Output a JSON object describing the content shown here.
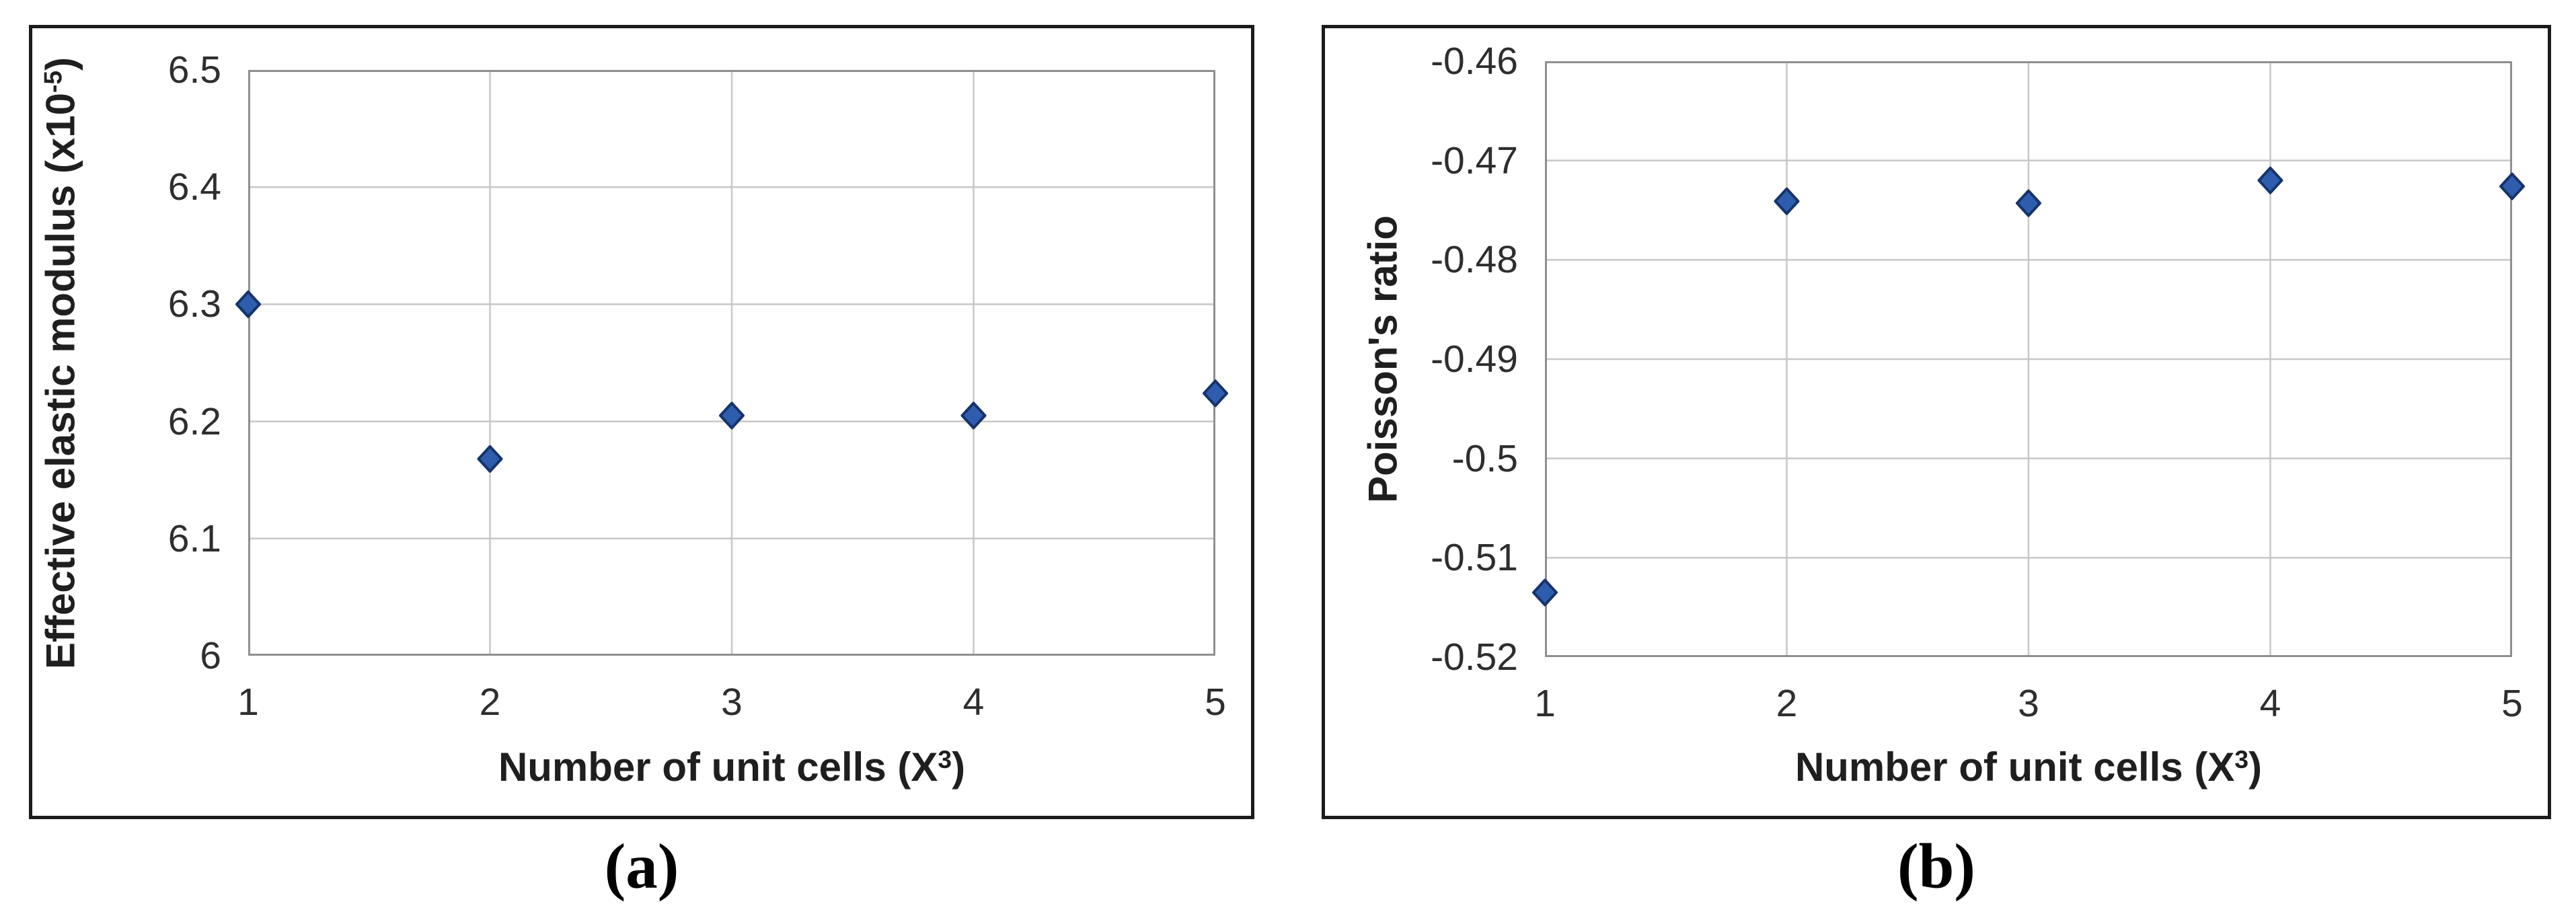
{
  "figure": {
    "background": "#ffffff",
    "caption_a": "(a)",
    "caption_b": "(b)"
  },
  "colors": {
    "panel_border": "#1b1b1b",
    "plot_border": "#8f8f8f",
    "gridline": "#c7c7c7",
    "marker_fill": "#2e5dad",
    "marker_stroke": "#16336b",
    "tick_text": "#2e2e2e",
    "title_text": "#1f1f1f"
  },
  "chart_data": [
    {
      "id": "a",
      "type": "scatter",
      "marker": "diamond",
      "x": [
        1,
        2,
        3,
        4,
        5
      ],
      "y": [
        6.3,
        6.168,
        6.205,
        6.205,
        6.224
      ],
      "xlim": [
        1,
        5
      ],
      "ylim": [
        6,
        6.5
      ],
      "xtick_labels": [
        "1",
        "2",
        "3",
        "4",
        "5"
      ],
      "xtick_values": [
        1,
        2,
        3,
        4,
        5
      ],
      "ytick_labels": [
        "6.5",
        "6.4",
        "6.3",
        "6.2",
        "6.1",
        "6"
      ],
      "ytick_values": [
        6.5,
        6.4,
        6.3,
        6.2,
        6.1,
        6
      ],
      "grid": true,
      "legend": null,
      "xlabel": "Number of unit cells (X³)",
      "xlabel_parts": {
        "pre": "Number of unit cells (X",
        "sup": "3",
        "post": ")"
      },
      "ylabel": "Effective elastic modulus (x10⁻⁵)",
      "ylabel_parts": {
        "pre": "Effective elastic modulus (x10",
        "sup": "-5",
        "post": ")"
      },
      "caption": "(a)"
    },
    {
      "id": "b",
      "type": "scatter",
      "marker": "diamond",
      "x": [
        1,
        2,
        3,
        4,
        5
      ],
      "y": [
        -0.5135,
        -0.4741,
        -0.4743,
        -0.472,
        -0.4726
      ],
      "xlim": [
        1,
        5
      ],
      "ylim": [
        -0.52,
        -0.46
      ],
      "xtick_labels": [
        "1",
        "2",
        "3",
        "4",
        "5"
      ],
      "xtick_values": [
        1,
        2,
        3,
        4,
        5
      ],
      "ytick_labels": [
        "-0.46",
        "-0.47",
        "-0.48",
        "-0.49",
        "-0.5",
        "-0.51",
        "-0.52"
      ],
      "ytick_values": [
        -0.46,
        -0.47,
        -0.48,
        -0.49,
        -0.5,
        -0.51,
        -0.52
      ],
      "grid": true,
      "legend": null,
      "xlabel": "Number of unit cells (X³)",
      "xlabel_parts": {
        "pre": "Number of unit cells (X",
        "sup": "3",
        "post": ")"
      },
      "ylabel": "Poisson's ratio",
      "ylabel_parts": {
        "pre": "Poisson's ratio",
        "sup": "",
        "post": ""
      },
      "caption": "(b)"
    }
  ]
}
